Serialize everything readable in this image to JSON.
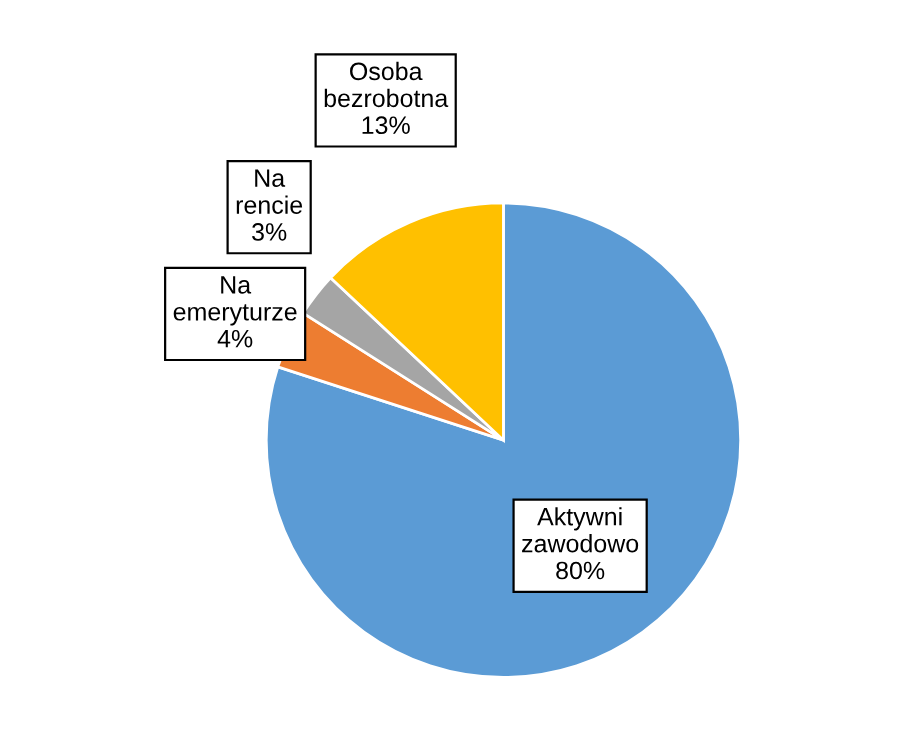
{
  "chart_data": {
    "type": "pie",
    "categories": [
      "Aktywni zawodowo",
      "Na emeryturze",
      "Na rencie",
      "Osoba bezrobotna"
    ],
    "values": [
      80,
      4,
      3,
      13
    ],
    "colors": [
      "#5b9bd5",
      "#ed7d31",
      "#a5a5a5",
      "#ffc000"
    ],
    "value_labels": [
      "80%",
      "4%",
      "3%",
      "13%"
    ]
  }
}
